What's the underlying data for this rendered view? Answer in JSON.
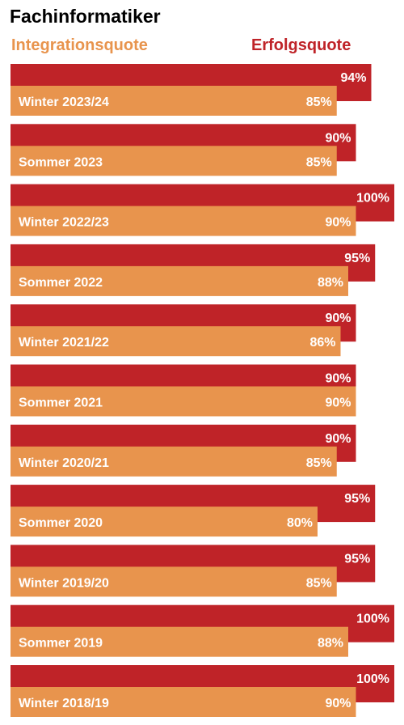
{
  "title": "Fachinformatiker",
  "legend": {
    "integration": "Integrationsquote",
    "success": "Erfolgsquote"
  },
  "colors": {
    "integration": "#E8944D",
    "success": "#BF2328"
  },
  "chart_data": {
    "type": "bar",
    "orientation": "horizontal",
    "title": "Fachinformatiker",
    "categories": [
      "Winter 2023/24",
      "Sommer 2023",
      "Winter 2022/23",
      "Sommer 2022",
      "Winter 2021/22",
      "Sommer 2021",
      "Winter 2020/21",
      "Sommer 2020",
      "Winter 2019/20",
      "Sommer 2019",
      "Winter 2018/19"
    ],
    "series": [
      {
        "name": "Erfolgsquote",
        "values": [
          94,
          90,
          100,
          95,
          90,
          90,
          90,
          95,
          95,
          100,
          100
        ],
        "labels": [
          "94%",
          "90%",
          "100%",
          "95%",
          "90%",
          "90%",
          "90%",
          "95%",
          "95%",
          "100%",
          "100%"
        ]
      },
      {
        "name": "Integrationsquote",
        "values": [
          85,
          85,
          90,
          88,
          86,
          90,
          85,
          80,
          85,
          88,
          90
        ],
        "labels": [
          "85%",
          "85%",
          "90%",
          "88%",
          "86%",
          "90%",
          "85%",
          "80%",
          "85%",
          "88%",
          "90%"
        ]
      }
    ],
    "xlim": [
      0,
      100
    ],
    "grid": false,
    "legend_position": "top"
  }
}
